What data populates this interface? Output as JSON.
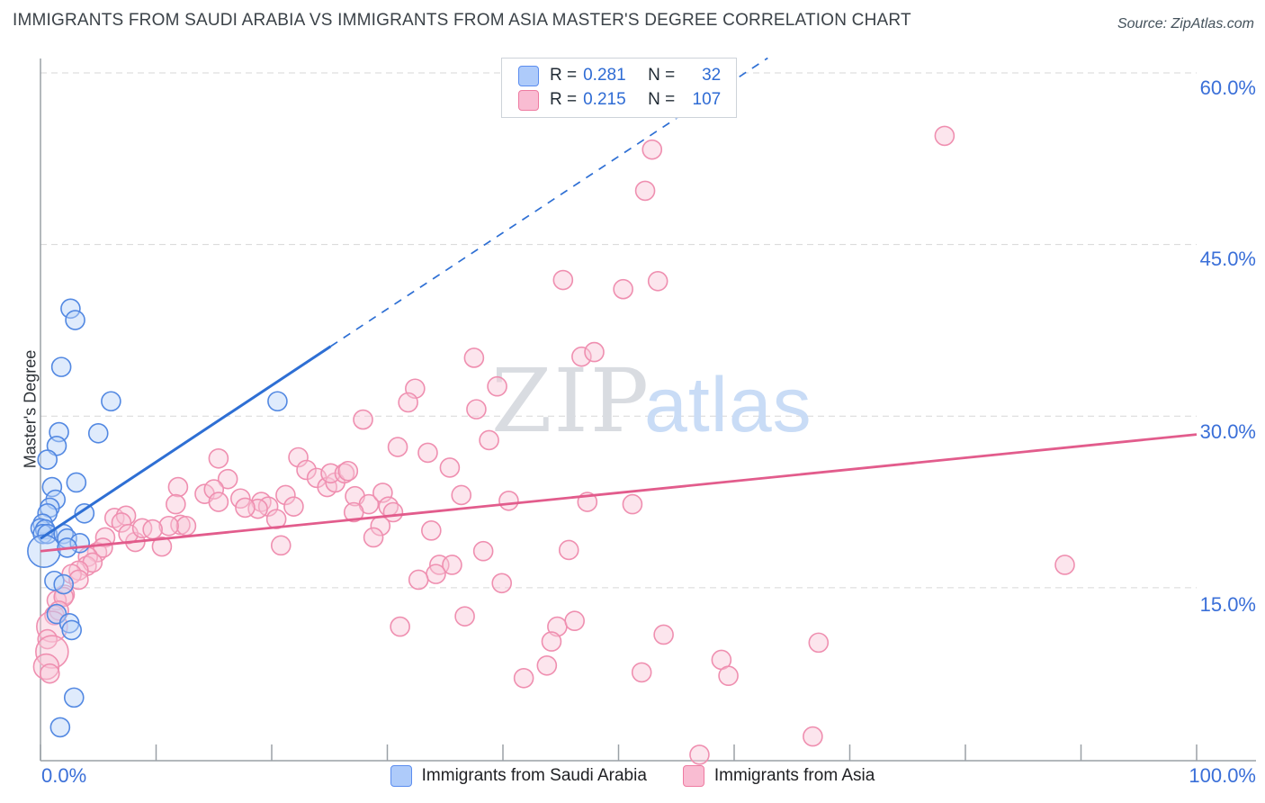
{
  "header": {
    "title": "IMMIGRANTS FROM SAUDI ARABIA VS IMMIGRANTS FROM ASIA MASTER'S DEGREE CORRELATION CHART",
    "source": "Source: ZipAtlas.com"
  },
  "axes": {
    "y_title": "Master's Degree",
    "x_min_label": "0.0%",
    "x_max_label": "100.0%",
    "y_tick_labels": [
      "60.0%",
      "45.0%",
      "30.0%",
      "15.0%"
    ],
    "y_tick_values": [
      60,
      45,
      30,
      15
    ],
    "x_tick_step_pct": 10,
    "grid_style": "dashed horizontal"
  },
  "watermark": {
    "part1": "ZIP",
    "part2": "atlas"
  },
  "correlation_legend": {
    "rows": [
      {
        "series": "Immigrants from Saudi Arabia",
        "r_label": "R =",
        "r_value": "0.281",
        "n_label": "N =",
        "n_value": "32"
      },
      {
        "series": "Immigrants from Asia",
        "r_label": "R =",
        "r_value": "0.215",
        "n_label": "N =",
        "n_value": "107"
      }
    ]
  },
  "series_legend": {
    "items": [
      {
        "label": "Immigrants from Saudi Arabia"
      },
      {
        "label": "Immigrants from Asia"
      }
    ]
  },
  "colors": {
    "blue_stroke": "#5288e2",
    "blue_fill": "#b9d3f8",
    "blue_trend": "#2e6fd4",
    "pink_stroke": "#ef8fb0",
    "pink_fill": "#f8c6d8",
    "pink_trend": "#e25c8c",
    "tick_label_blue": "#3a6fd8",
    "gridline": "#d7d7d7",
    "axis": "#9aa0a6",
    "watermark_zip": "#d9dce1",
    "watermark_atlas": "#c9dcf6"
  },
  "chart_data": {
    "type": "scatter",
    "title": "IMMIGRANTS FROM SAUDI ARABIA VS IMMIGRANTS FROM ASIA MASTER'S DEGREE CORRELATION CHART",
    "ylabel": "Master's Degree",
    "xlim": [
      0,
      100
    ],
    "ylim": [
      0,
      61.5
    ],
    "x_unit": "%",
    "y_unit": "%",
    "legend_position": "top-center",
    "series": [
      {
        "name": "Immigrants from Saudi Arabia",
        "R": 0.281,
        "N": 32,
        "points": [
          [
            2.6,
            39.4
          ],
          [
            3.0,
            38.4
          ],
          [
            1.8,
            34.3
          ],
          [
            6.1,
            31.3
          ],
          [
            20.5,
            31.3
          ],
          [
            5.0,
            28.5
          ],
          [
            1.6,
            28.6
          ],
          [
            1.4,
            27.4
          ],
          [
            0.6,
            26.2
          ],
          [
            3.1,
            24.2
          ],
          [
            1.0,
            23.8
          ],
          [
            1.3,
            22.7
          ],
          [
            0.8,
            22.0
          ],
          [
            0.6,
            21.5
          ],
          [
            3.8,
            21.5
          ],
          [
            0.2,
            20.6
          ],
          [
            0.0,
            20.2
          ],
          [
            0.4,
            20.1
          ],
          [
            0.2,
            19.7
          ],
          [
            0.6,
            19.7
          ],
          [
            2.0,
            19.7
          ],
          [
            2.3,
            19.3
          ],
          [
            3.4,
            18.9
          ],
          [
            0.3,
            18.2,
            18
          ],
          [
            2.3,
            18.5
          ],
          [
            1.2,
            15.6
          ],
          [
            2.0,
            15.3
          ],
          [
            1.4,
            12.7
          ],
          [
            2.5,
            11.9
          ],
          [
            2.7,
            11.3
          ],
          [
            2.9,
            5.4
          ],
          [
            1.7,
            2.8
          ]
        ]
      },
      {
        "name": "Immigrants from Asia",
        "R": 0.215,
        "N": 107,
        "points": [
          [
            78.2,
            54.5
          ],
          [
            52.9,
            53.3
          ],
          [
            52.3,
            49.7
          ],
          [
            45.2,
            41.9
          ],
          [
            50.4,
            41.1
          ],
          [
            53.4,
            41.8
          ],
          [
            46.8,
            35.2
          ],
          [
            47.9,
            35.6
          ],
          [
            37.5,
            35.1
          ],
          [
            32.4,
            32.4
          ],
          [
            31.8,
            31.2
          ],
          [
            39.5,
            32.6
          ],
          [
            37.7,
            30.6
          ],
          [
            27.9,
            29.7
          ],
          [
            38.8,
            27.9
          ],
          [
            30.9,
            27.3
          ],
          [
            33.5,
            26.8
          ],
          [
            35.4,
            25.5
          ],
          [
            22.3,
            26.4
          ],
          [
            23.0,
            25.3
          ],
          [
            23.9,
            24.6
          ],
          [
            24.8,
            23.8
          ],
          [
            25.5,
            24.2
          ],
          [
            25.1,
            25.0
          ],
          [
            26.3,
            25.0
          ],
          [
            26.6,
            25.2
          ],
          [
            21.2,
            23.1
          ],
          [
            21.9,
            22.1
          ],
          [
            19.1,
            22.5
          ],
          [
            19.7,
            22.1
          ],
          [
            18.8,
            21.9
          ],
          [
            20.4,
            21.0
          ],
          [
            27.2,
            23.0
          ],
          [
            28.4,
            22.3
          ],
          [
            29.6,
            23.3
          ],
          [
            30.1,
            22.1
          ],
          [
            30.5,
            21.6
          ],
          [
            27.1,
            21.6
          ],
          [
            40.5,
            22.6
          ],
          [
            47.3,
            22.5
          ],
          [
            36.4,
            23.1
          ],
          [
            20.8,
            18.7
          ],
          [
            29.4,
            20.4
          ],
          [
            28.8,
            19.4
          ],
          [
            33.8,
            20.0
          ],
          [
            38.3,
            18.2
          ],
          [
            34.5,
            17.0
          ],
          [
            35.6,
            17.0
          ],
          [
            34.2,
            16.2
          ],
          [
            32.7,
            15.7
          ],
          [
            39.9,
            15.4
          ],
          [
            36.7,
            12.5
          ],
          [
            31.1,
            11.6
          ],
          [
            44.7,
            11.6
          ],
          [
            46.2,
            12.1
          ],
          [
            44.2,
            10.3
          ],
          [
            43.8,
            8.2
          ],
          [
            41.8,
            7.1
          ],
          [
            45.7,
            18.3
          ],
          [
            53.9,
            10.9
          ],
          [
            52.0,
            7.6
          ],
          [
            58.9,
            8.7
          ],
          [
            59.5,
            7.3
          ],
          [
            57.0,
            0.4
          ],
          [
            67.3,
            10.2
          ],
          [
            66.8,
            2.0
          ],
          [
            88.6,
            17.0
          ],
          [
            15.4,
            26.3
          ],
          [
            16.2,
            24.5
          ],
          [
            11.9,
            23.8
          ],
          [
            14.2,
            23.2
          ],
          [
            11.7,
            22.3
          ],
          [
            12.1,
            20.5
          ],
          [
            12.6,
            20.4
          ],
          [
            11.1,
            20.4
          ],
          [
            6.4,
            21.1
          ],
          [
            7.4,
            21.3
          ],
          [
            7.0,
            20.7
          ],
          [
            10.5,
            18.6
          ],
          [
            8.2,
            19.0
          ],
          [
            7.6,
            19.7
          ],
          [
            8.8,
            20.2
          ],
          [
            9.7,
            20.1
          ],
          [
            5.6,
            19.4
          ],
          [
            4.9,
            18.1
          ],
          [
            5.4,
            18.5
          ],
          [
            4.1,
            17.7
          ],
          [
            4.0,
            16.9
          ],
          [
            4.5,
            17.2
          ],
          [
            3.3,
            16.5
          ],
          [
            2.7,
            16.2
          ],
          [
            3.3,
            15.7
          ],
          [
            2.1,
            14.4
          ],
          [
            1.4,
            13.9
          ],
          [
            2.0,
            14.2
          ],
          [
            1.2,
            12.6
          ],
          [
            1.6,
            13.0
          ],
          [
            1.0,
            11.6,
            17
          ],
          [
            0.6,
            10.5
          ],
          [
            1.0,
            9.4,
            18
          ],
          [
            0.5,
            8.1,
            14
          ],
          [
            0.8,
            7.5
          ],
          [
            15.0,
            23.6
          ],
          [
            15.4,
            22.5
          ],
          [
            17.3,
            22.8
          ],
          [
            17.7,
            22.0
          ],
          [
            51.2,
            22.3
          ]
        ]
      }
    ],
    "trend_lines": [
      {
        "series": "Immigrants from Saudi Arabia",
        "style": "solid-then-dashed",
        "x_start": 0,
        "y_start": 19.3,
        "x_solid_end": 25.1,
        "y_solid_end": 36.1,
        "x_dash_end": 62.9,
        "y_dash_end": 61.3
      },
      {
        "series": "Immigrants from Asia",
        "style": "solid",
        "x_start": 0,
        "y_start": 18.2,
        "x_end": 100,
        "y_end": 28.4
      }
    ]
  }
}
